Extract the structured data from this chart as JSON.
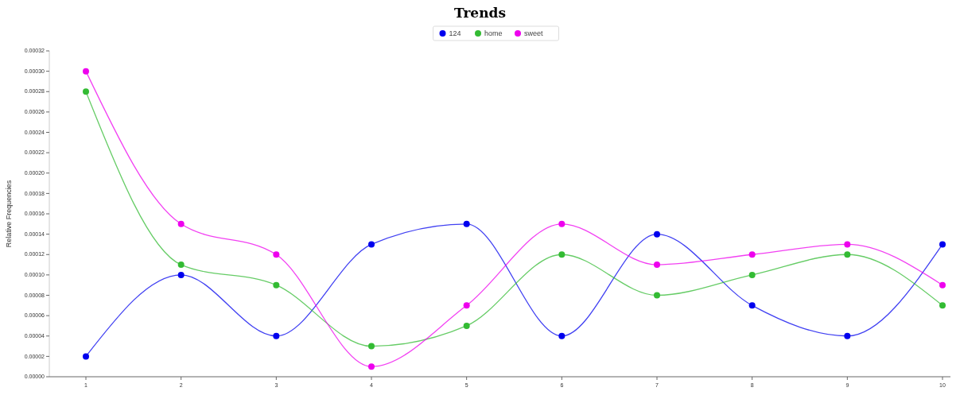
{
  "chart_data": {
    "type": "line",
    "title": "Trends",
    "ylabel": "Relative Frequencies",
    "categories": [
      "1",
      "2",
      "3",
      "4",
      "5",
      "6",
      "7",
      "8",
      "9",
      "10"
    ],
    "series": [
      {
        "name": "124",
        "color": "#0000ee",
        "values": [
          2e-05,
          0.0001,
          4e-05,
          0.00013,
          0.00015,
          4e-05,
          0.00014,
          7e-05,
          4e-05,
          0.00013
        ]
      },
      {
        "name": "home",
        "color": "#33bb33",
        "values": [
          0.00028,
          0.00011,
          9e-05,
          3e-05,
          5e-05,
          0.00012,
          8e-05,
          0.0001,
          0.00012,
          7e-05
        ]
      },
      {
        "name": "sweet",
        "color": "#ee00ee",
        "values": [
          0.0003,
          0.00015,
          0.00012,
          1e-05,
          7e-05,
          0.00015,
          0.00011,
          0.00012,
          0.00013,
          9e-05
        ]
      }
    ],
    "ylim": [
      0,
      0.00032
    ],
    "yticks": [
      {
        "value": 0,
        "label": "0.00000"
      },
      {
        "value": 2e-05,
        "label": "0.00002"
      },
      {
        "value": 4e-05,
        "label": "0.00004"
      },
      {
        "value": 6e-05,
        "label": "0.00006"
      },
      {
        "value": 8e-05,
        "label": "0.00008"
      },
      {
        "value": 0.0001,
        "label": "0.00010"
      },
      {
        "value": 0.00012,
        "label": "0.00012"
      },
      {
        "value": 0.00014,
        "label": "0.00014"
      },
      {
        "value": 0.00016,
        "label": "0.00016"
      },
      {
        "value": 0.00018,
        "label": "0.00018"
      },
      {
        "value": 0.0002,
        "label": "0.00020"
      },
      {
        "value": 0.00022,
        "label": "0.00022"
      },
      {
        "value": 0.00024,
        "label": "0.00024"
      },
      {
        "value": 0.00026,
        "label": "0.00026"
      },
      {
        "value": 0.00028,
        "label": "0.00028"
      },
      {
        "value": 0.0003,
        "label": "0.00030"
      },
      {
        "value": 0.00032,
        "label": "0.00032"
      }
    ],
    "legend": "top",
    "marker": "circle",
    "line_style": "solid",
    "grid": false
  }
}
